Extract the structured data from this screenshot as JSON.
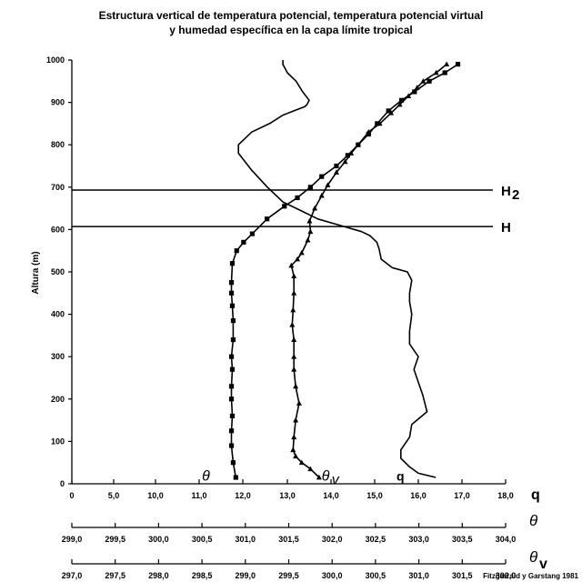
{
  "title_line1": "Estructura vertical de temperatura potencial, temperatura potencial virtual",
  "title_line2": "y humedad específica en  la capa límite tropical",
  "source": "Fitzgarrald y Garstang 1981",
  "chart_data": {
    "type": "line",
    "title": "Estructura vertical de temperatura potencial, temperatura potencial virtual y humedad específica en  la capa límite tropical",
    "ylabel": "Altura (m)",
    "ylim": [
      0,
      1000
    ],
    "y_ticks": [
      "0",
      "100",
      "200",
      "300",
      "400",
      "500",
      "600",
      "700",
      "800",
      "900",
      "1000"
    ],
    "x_axes": [
      {
        "id": "q",
        "symbol": "q",
        "range": [
          0,
          18
        ],
        "ticks": [
          "0",
          "5,0",
          "10,0",
          "11,0",
          "12,0",
          "13,0",
          "14,0",
          "15,0",
          "16,0",
          "17,0",
          "18,0"
        ]
      },
      {
        "id": "theta",
        "symbol": "θ",
        "range": [
          299.0,
          304.0
        ],
        "ticks": [
          "299,0",
          "299,5",
          "300,0",
          "300,5",
          "301,0",
          "301,5",
          "302,0",
          "302,5",
          "303,0",
          "303,5",
          "304,0"
        ]
      },
      {
        "id": "theta_v",
        "symbol": "θ",
        "symbol_sub": "v",
        "range": [
          297.0,
          302.0
        ],
        "ticks": [
          "297,0",
          "297,5",
          "298,0",
          "298,5",
          "299,0",
          "299,5",
          "300,0",
          "300,5",
          "301,0",
          "301,5",
          "302,0"
        ]
      }
    ],
    "levels": [
      {
        "label": "H",
        "sub": "2",
        "y": 693
      },
      {
        "label": "H",
        "sub": "",
        "y": 607
      }
    ],
    "series": [
      {
        "label": "θ",
        "label_sub": "",
        "axis": "theta",
        "marker": "square",
        "label_pos": [
          300.5,
          8
        ],
        "points": [
          [
            300.89,
            15
          ],
          [
            300.86,
            50
          ],
          [
            300.84,
            90
          ],
          [
            300.84,
            125
          ],
          [
            300.85,
            160
          ],
          [
            300.84,
            200
          ],
          [
            300.84,
            230
          ],
          [
            300.85,
            270
          ],
          [
            300.84,
            300
          ],
          [
            300.86,
            340
          ],
          [
            300.86,
            385
          ],
          [
            300.85,
            420
          ],
          [
            300.84,
            450
          ],
          [
            300.84,
            475
          ],
          [
            300.85,
            520
          ],
          [
            300.9,
            550
          ],
          [
            300.98,
            570
          ],
          [
            301.08,
            590
          ],
          [
            301.25,
            625
          ],
          [
            301.45,
            655
          ],
          [
            301.6,
            675
          ],
          [
            301.75,
            700
          ],
          [
            301.88,
            725
          ],
          [
            302.05,
            750
          ],
          [
            302.18,
            775
          ],
          [
            302.3,
            800
          ],
          [
            302.42,
            825
          ],
          [
            302.52,
            850
          ],
          [
            302.65,
            880
          ],
          [
            302.8,
            905
          ],
          [
            302.95,
            925
          ],
          [
            303.12,
            950
          ],
          [
            303.3,
            970
          ],
          [
            303.45,
            990
          ]
        ]
      },
      {
        "label": "θ",
        "label_sub": "v",
        "axis": "theta_v",
        "marker": "triangle",
        "label_pos": [
          299.88,
          8
        ],
        "points": [
          [
            299.85,
            15
          ],
          [
            299.75,
            35
          ],
          [
            299.65,
            50
          ],
          [
            299.58,
            65
          ],
          [
            299.55,
            80
          ],
          [
            299.56,
            110
          ],
          [
            299.58,
            150
          ],
          [
            299.62,
            190
          ],
          [
            299.58,
            230
          ],
          [
            299.56,
            270
          ],
          [
            299.56,
            300
          ],
          [
            299.56,
            340
          ],
          [
            299.54,
            375
          ],
          [
            299.55,
            410
          ],
          [
            299.56,
            450
          ],
          [
            299.56,
            490
          ],
          [
            299.53,
            515
          ],
          [
            299.6,
            530
          ],
          [
            299.65,
            545
          ],
          [
            299.72,
            575
          ],
          [
            299.75,
            595
          ],
          [
            299.74,
            620
          ],
          [
            299.8,
            650
          ],
          [
            299.88,
            680
          ],
          [
            299.95,
            705
          ],
          [
            300.05,
            735
          ],
          [
            300.15,
            760
          ],
          [
            300.22,
            780
          ],
          [
            300.3,
            800
          ],
          [
            300.42,
            830
          ],
          [
            300.55,
            850
          ],
          [
            300.68,
            875
          ],
          [
            300.78,
            895
          ],
          [
            300.88,
            915
          ],
          [
            300.98,
            935
          ],
          [
            301.05,
            950
          ],
          [
            301.2,
            970
          ],
          [
            301.32,
            990
          ]
        ]
      },
      {
        "label": "q",
        "label_sub": "",
        "axis": "q",
        "marker": "none",
        "label_pos": [
          15.5,
          8
        ],
        "points": [
          [
            16.4,
            15
          ],
          [
            16.0,
            25
          ],
          [
            15.8,
            40
          ],
          [
            15.6,
            60
          ],
          [
            15.6,
            80
          ],
          [
            15.8,
            110
          ],
          [
            15.85,
            140
          ],
          [
            16.2,
            170
          ],
          [
            16.1,
            210
          ],
          [
            16.0,
            240
          ],
          [
            15.9,
            270
          ],
          [
            16.0,
            300
          ],
          [
            15.8,
            330
          ],
          [
            15.8,
            360
          ],
          [
            15.85,
            400
          ],
          [
            15.8,
            430
          ],
          [
            15.8,
            450
          ],
          [
            15.85,
            480
          ],
          [
            15.75,
            500
          ],
          [
            15.4,
            510
          ],
          [
            15.15,
            530
          ],
          [
            15.1,
            555
          ],
          [
            15.05,
            570
          ],
          [
            14.9,
            585
          ],
          [
            14.7,
            595
          ],
          [
            14.3,
            607
          ],
          [
            13.7,
            625
          ],
          [
            13.3,
            645
          ],
          [
            12.9,
            665
          ],
          [
            12.55,
            700
          ],
          [
            12.2,
            740
          ],
          [
            11.9,
            780
          ],
          [
            11.9,
            800
          ],
          [
            12.2,
            830
          ],
          [
            12.6,
            850
          ],
          [
            12.9,
            870
          ],
          [
            13.15,
            880
          ],
          [
            13.4,
            890
          ],
          [
            13.45,
            895
          ],
          [
            13.5,
            905
          ],
          [
            13.35,
            925
          ],
          [
            13.2,
            950
          ],
          [
            13.0,
            970
          ],
          [
            12.9,
            990
          ],
          [
            12.9,
            1000
          ]
        ]
      }
    ],
    "grid": false,
    "legend": "none"
  }
}
